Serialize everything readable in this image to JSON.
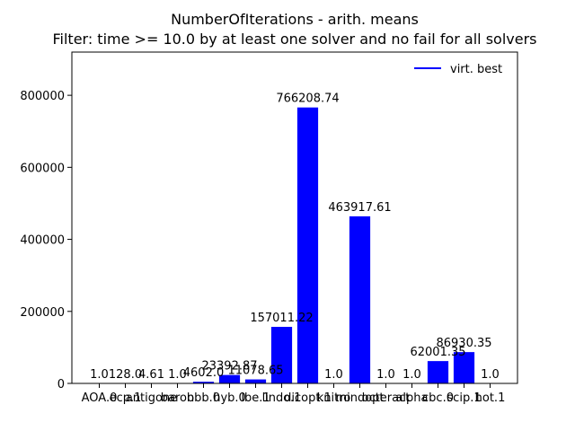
{
  "chart_data": {
    "type": "bar",
    "title": "NumberOfIterations - arith. means",
    "subtitle": "Filter: time >= 10.0 by at least one solver and no fail for all solvers",
    "xlabel": "",
    "ylabel": "",
    "ylim": [
      0,
      920000
    ],
    "yticks": [
      0,
      200000,
      400000,
      600000,
      800000
    ],
    "grid": false,
    "legend_position": "top-right",
    "bar_color": "#0000ff",
    "categories": [
      "AOA.0",
      "ecp.1",
      "antigone",
      "baron",
      "bbb.0",
      "hyb.0",
      "lbe.1",
      "lindo.1",
      "dicopt.1",
      "knitro",
      "mindopt",
      "octeract",
      "alpha",
      "cbc.0",
      "scip.1",
      "hot.1"
    ],
    "series": [
      {
        "name": "virt. best",
        "values": [
          1.0,
          128.0,
          4.61,
          1.0,
          4602.0,
          23392.87,
          11078.65,
          157011.22,
          766208.74,
          1.0,
          463917.61,
          1.0,
          1.0,
          62001.35,
          86930.35,
          1.0
        ],
        "labels": [
          "1.0",
          "128.0",
          "4.61",
          "1.0",
          "4602.0",
          "23392.87",
          "11078.65",
          "157011.22",
          "766208.74",
          "1.0",
          "463917.61",
          "1.0",
          "1.0",
          "62001.35",
          "86930.35",
          "1.0"
        ]
      }
    ]
  }
}
